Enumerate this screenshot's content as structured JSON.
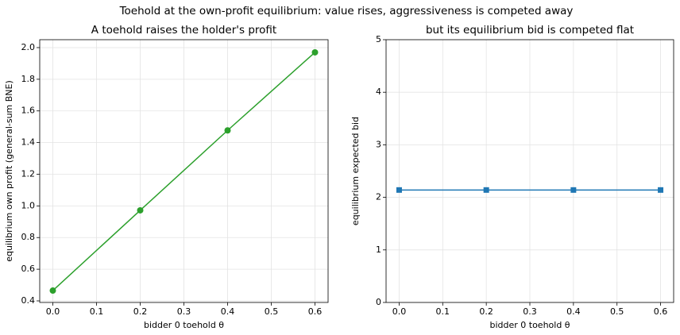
{
  "title": "Toehold at the own-profit equilibrium: value rises, aggressiveness is competed away",
  "chart_data": [
    {
      "type": "line",
      "title": "A toehold raises the holder's profit",
      "x_label": "bidder 0 toehold θ",
      "y_label": "equilibrium own profit (general-sum BNE)",
      "x": [
        0,
        0.2,
        0.4,
        0.6
      ],
      "series": [
        {
          "color": "#2ca02c",
          "marker": "circle",
          "values": [
            0.465,
            0.972,
            1.477,
            1.97
          ]
        }
      ],
      "xlim": [
        -0.03,
        0.63
      ],
      "ylim": [
        0.39,
        2.05
      ],
      "grid": true,
      "xticks": [
        {
          "value": 0,
          "label": "0.0"
        },
        0.1,
        0.2,
        0.3,
        0.4,
        0.5,
        0.6
      ],
      "yticks": [
        0.4,
        0.6,
        0.8,
        {
          "value": 1,
          "label": "1.0"
        },
        1.2,
        1.4,
        1.6,
        1.8,
        {
          "value": 2,
          "label": "2.0"
        }
      ]
    },
    {
      "type": "line",
      "title": "but its equilibrium bid is competed flat",
      "x_label": "bidder 0 toehold θ",
      "y_label": "equilibrium expected bid",
      "x": [
        0,
        0.2,
        0.4,
        0.6
      ],
      "series": [
        {
          "color": "#1f77b4",
          "marker": "square",
          "values": [
            2.14,
            2.14,
            2.14,
            2.14
          ]
        }
      ],
      "xlim": [
        -0.03,
        0.63
      ],
      "ylim": [
        0,
        5
      ],
      "grid": true,
      "xticks": [
        {
          "value": 0,
          "label": "0.0"
        },
        0.1,
        0.2,
        0.3,
        0.4,
        0.5,
        0.6
      ],
      "yticks": [
        0,
        1,
        2,
        3,
        4,
        5
      ]
    }
  ]
}
